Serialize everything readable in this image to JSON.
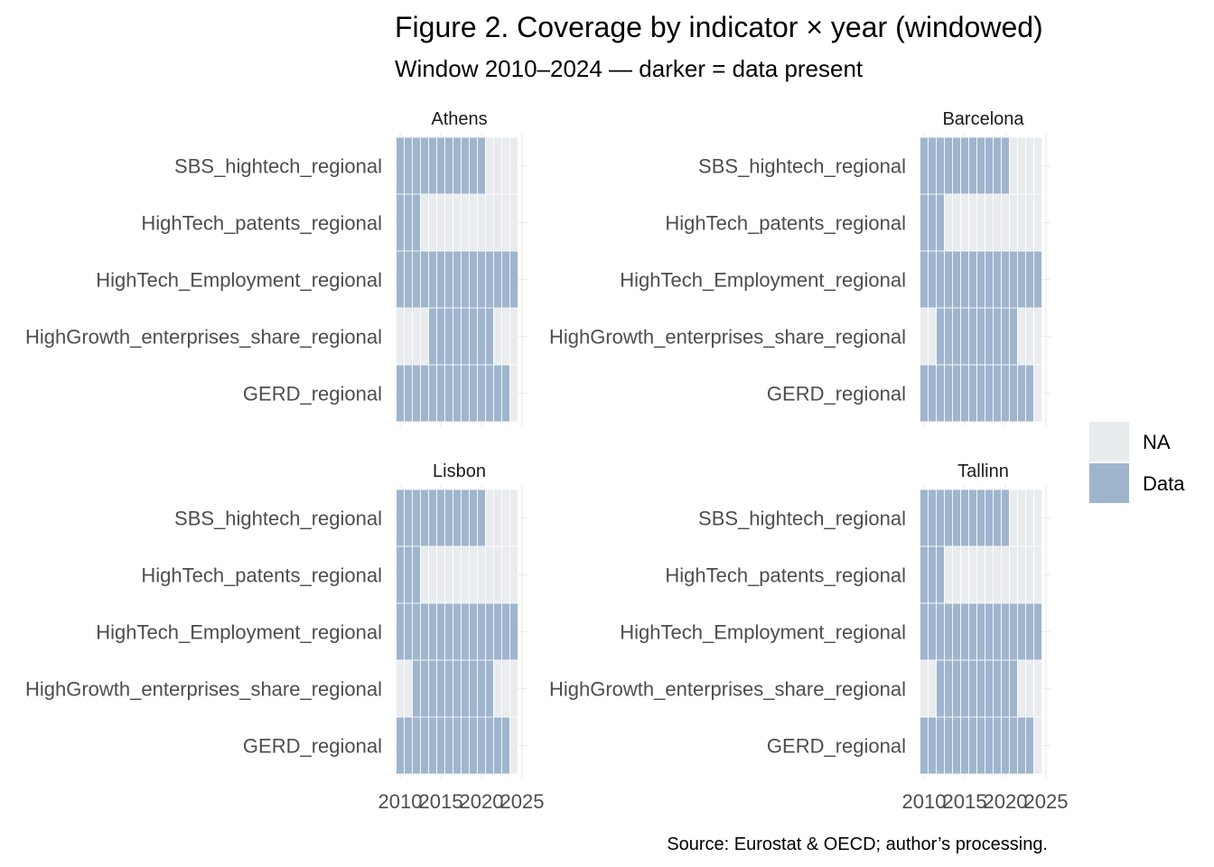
{
  "chart_data": {
    "type": "heatmap",
    "title": "Figure 2. Coverage by indicator × year (windowed)",
    "subtitle": "Window 2010–2024 — darker = data present",
    "caption": "Source: Eurostat & OECD; author’s processing.",
    "xlim": [
      2010,
      2025
    ],
    "x_ticks": [
      2010,
      2015,
      2020,
      2025
    ],
    "x_tick_labels": [
      "2010",
      "2015",
      "2020",
      "2025"
    ],
    "indicators": [
      "SBS_hightech_regional",
      "HighTech_patents_regional",
      "HighTech_Employment_regional",
      "HighGrowth_enterprises_share_regional",
      "GERD_regional"
    ],
    "years": [
      2010,
      2011,
      2012,
      2013,
      2014,
      2015,
      2016,
      2017,
      2018,
      2019,
      2020,
      2021,
      2022,
      2023,
      2024
    ],
    "legend": {
      "position": "right",
      "items": [
        {
          "label": "NA",
          "color": "#e9ecef"
        },
        {
          "label": "Data",
          "color": "#9fb5ce"
        }
      ]
    },
    "grid": true,
    "panels": [
      {
        "name": "Athens",
        "coverage": {
          "SBS_hightech_regional": [
            2010,
            2020
          ],
          "HighTech_patents_regional": [
            2010,
            2012
          ],
          "HighTech_Employment_regional": [
            2010,
            2024
          ],
          "HighGrowth_enterprises_share_regional": [
            2014,
            2021
          ],
          "GERD_regional": [
            2010,
            2023
          ]
        }
      },
      {
        "name": "Barcelona",
        "coverage": {
          "SBS_hightech_regional": [
            2010,
            2020
          ],
          "HighTech_patents_regional": [
            2010,
            2012
          ],
          "HighTech_Employment_regional": [
            2010,
            2024
          ],
          "HighGrowth_enterprises_share_regional": [
            2012,
            2021
          ],
          "GERD_regional": [
            2010,
            2023
          ]
        }
      },
      {
        "name": "Lisbon",
        "coverage": {
          "SBS_hightech_regional": [
            2010,
            2020
          ],
          "HighTech_patents_regional": [
            2010,
            2012
          ],
          "HighTech_Employment_regional": [
            2010,
            2024
          ],
          "HighGrowth_enterprises_share_regional": [
            2012,
            2021
          ],
          "GERD_regional": [
            2010,
            2023
          ]
        }
      },
      {
        "name": "Tallinn",
        "coverage": {
          "SBS_hightech_regional": [
            2010,
            2020
          ],
          "HighTech_patents_regional": [
            2010,
            2012
          ],
          "HighTech_Employment_regional": [
            2010,
            2024
          ],
          "HighGrowth_enterprises_share_regional": [
            2012,
            2021
          ],
          "GERD_regional": [
            2010,
            2023
          ]
        }
      }
    ]
  }
}
